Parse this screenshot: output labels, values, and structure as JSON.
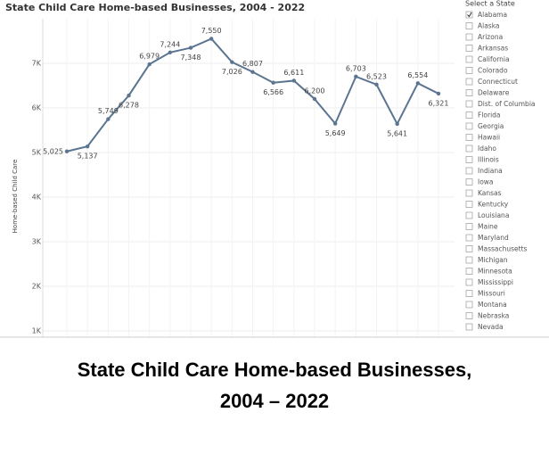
{
  "chart_data": {
    "type": "line",
    "title": "State Child Care Home-based Businesses, 2004 - 2022",
    "y_label": "Home-based Child Care",
    "values": [
      5025,
      5137,
      5749,
      6278,
      6979,
      7244,
      7348,
      7550,
      7026,
      6807,
      6566,
      6611,
      6200,
      5649,
      6703,
      6523,
      5641,
      6554,
      6321
    ],
    "value_labels": [
      "5,025",
      "5,137",
      "5,749",
      "6,278",
      "6,979",
      "7,244",
      "7,348",
      "7,550",
      "7,026",
      "6,807",
      "6,566",
      "6,611",
      "6,200",
      "5,649",
      "6,703",
      "6,523",
      "5,641",
      "6,554",
      "6,321"
    ],
    "color": "#5b7590",
    "ylim": [
      860,
      8000
    ],
    "yticks": [
      {
        "value": 1000,
        "label": "1K"
      },
      {
        "value": 2000,
        "label": "2K"
      },
      {
        "value": 3000,
        "label": "3K"
      },
      {
        "value": 4000,
        "label": "4K"
      },
      {
        "value": 5000,
        "label": "5K"
      },
      {
        "value": 6000,
        "label": "6K"
      },
      {
        "value": 7000,
        "label": "7K"
      }
    ],
    "grid": true
  },
  "state_filter": {
    "title": "Select a State",
    "options": [
      "Alabama",
      "Alaska",
      "Arizona",
      "Arkansas",
      "California",
      "Colorado",
      "Connecticut",
      "Delaware",
      "Dist. of Columbia",
      "Florida",
      "Georgia",
      "Hawaii",
      "Idaho",
      "Illinois",
      "Indiana",
      "Iowa",
      "Kansas",
      "Kentucky",
      "Louisiana",
      "Maine",
      "Maryland",
      "Massachusetts",
      "Michigan",
      "Minnesota",
      "Mississippi",
      "Missouri",
      "Montana",
      "Nebraska",
      "Nevada"
    ],
    "checked": [
      "Alabama"
    ]
  },
  "caption": [
    "State Child Care Home-based Businesses,",
    "2004 – 2022"
  ]
}
